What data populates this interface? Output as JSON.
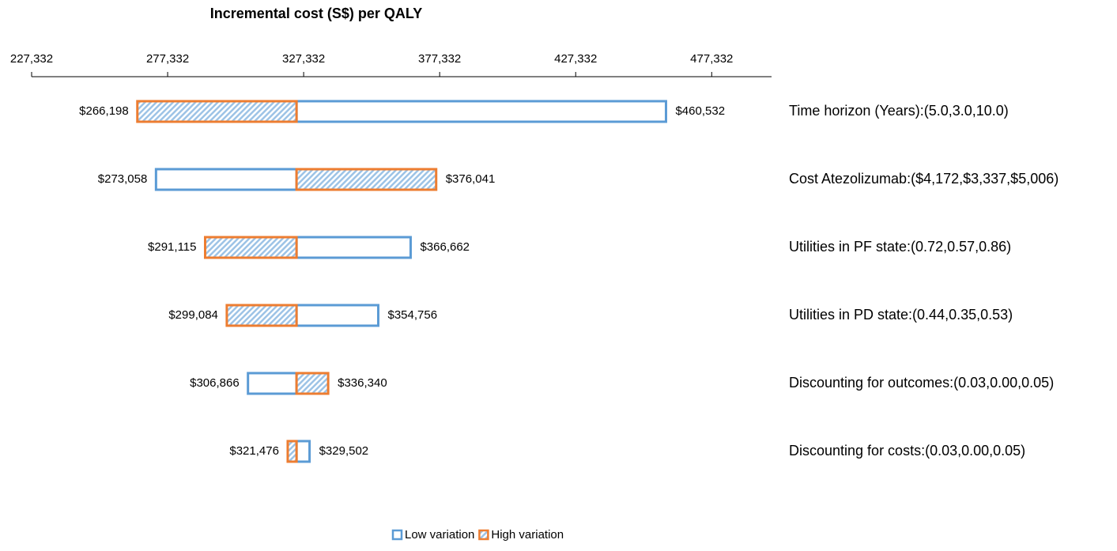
{
  "chart_data": {
    "type": "tornado",
    "title": "Incremental cost (S$) per QALY",
    "categories": [
      "Time horizon (Years):(5.0,3.0,10.0)",
      "Cost Atezolizumab:($4,172,$3,337,$5,006)",
      "Utilities in PF state:(0.72,0.57,0.86)",
      "Utilities in PD state:(0.44,0.35,0.53)",
      "Discounting for outcomes:(0.03,0.00,0.05)",
      "Discounting for costs:(0.03,0.00,0.05)"
    ],
    "base": 324716,
    "series": [
      {
        "name": "Low variation",
        "color": "#5b9bd5",
        "values": [
          460532,
          273058,
          366662,
          354756,
          306866,
          329502
        ],
        "value_labels": [
          "$460,532",
          "$273,058",
          "$366,662",
          "$354,756",
          "$306,866",
          "$329,502"
        ]
      },
      {
        "name": "High variation",
        "color": "#ed7d31",
        "values": [
          266198,
          376041,
          291115,
          299084,
          336340,
          321476
        ],
        "value_labels": [
          "$266,198",
          "$376,041",
          "$291,115",
          "$299,084",
          "$336,340",
          "$321,476"
        ]
      }
    ],
    "xlim": [
      227332,
      499332
    ],
    "xticks": [
      {
        "value": 227332,
        "label": "227,332"
      },
      {
        "value": 277332,
        "label": "277,332"
      },
      {
        "value": 327332,
        "label": "327,332"
      },
      {
        "value": 377332,
        "label": "377,332"
      },
      {
        "value": 427332,
        "label": "427,332"
      },
      {
        "value": 477332,
        "label": "477,332"
      }
    ],
    "legend": "bottom"
  }
}
